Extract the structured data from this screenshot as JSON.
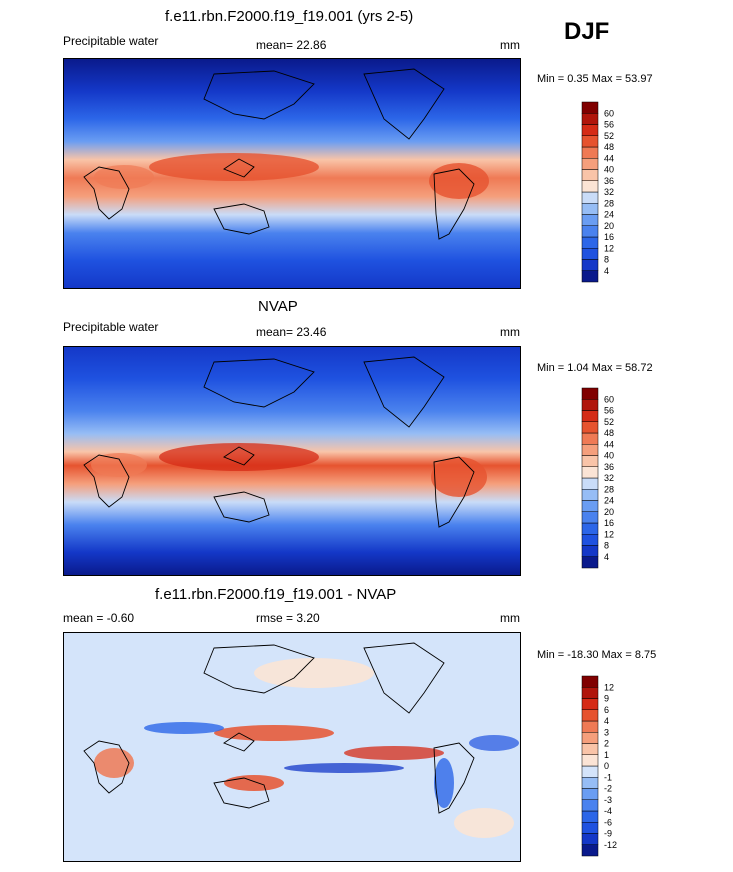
{
  "season": "DJF",
  "panels": [
    {
      "title": "f.e11.rbn.F2000.f19_f19.001 (yrs 2-5)",
      "left_label": "Precipitable water",
      "stat_text": "mean=  22.86",
      "units": "mm",
      "minmax": "Min =   0.35 Max =  53.97",
      "colorbar": {
        "labels": [
          "4",
          "8",
          "12",
          "16",
          "20",
          "24",
          "28",
          "32",
          "36",
          "40",
          "44",
          "48",
          "52",
          "56",
          "60"
        ],
        "colors": [
          "#0a1a8c",
          "#1438c8",
          "#1f52e0",
          "#2c66e8",
          "#4a82ee",
          "#6a9df2",
          "#96bdf5",
          "#c9dcf8",
          "#fbe4d5",
          "#f9c4a8",
          "#f59f7c",
          "#ef7a55",
          "#e6532f",
          "#d52b16",
          "#b0150b",
          "#800000"
        ]
      }
    },
    {
      "title": "NVAP",
      "left_label": "Precipitable water",
      "stat_text": "mean=  23.46",
      "units": "mm",
      "minmax": "Min =   1.04 Max =  58.72",
      "colorbar": {
        "labels": [
          "4",
          "8",
          "12",
          "16",
          "20",
          "24",
          "28",
          "32",
          "36",
          "40",
          "44",
          "48",
          "52",
          "56",
          "60"
        ],
        "colors": [
          "#0a1a8c",
          "#1438c8",
          "#1f52e0",
          "#2c66e8",
          "#4a82ee",
          "#6a9df2",
          "#96bdf5",
          "#c9dcf8",
          "#fbe4d5",
          "#f9c4a8",
          "#f59f7c",
          "#ef7a55",
          "#e6532f",
          "#d52b16",
          "#b0150b",
          "#800000"
        ]
      }
    },
    {
      "title": "f.e11.rbn.F2000.f19_f19.001 - NVAP",
      "left_label": "mean =  -0.60",
      "stat_text": "rmse =   3.20",
      "units": "mm",
      "minmax": "Min = -18.30 Max =   8.75",
      "colorbar": {
        "labels": [
          "-12",
          "-9",
          "-6",
          "-4",
          "-3",
          "-2",
          "-1",
          "0",
          "1",
          "2",
          "3",
          "4",
          "6",
          "9",
          "12"
        ],
        "colors": [
          "#0a1a8c",
          "#1438c8",
          "#1f52e0",
          "#2c66e8",
          "#4a82ee",
          "#6a9df2",
          "#96bdf5",
          "#d4e4fa",
          "#fbe4d5",
          "#f9c4a8",
          "#f59f7c",
          "#ef7a55",
          "#e6532f",
          "#d52b16",
          "#b0150b",
          "#800000"
        ]
      }
    }
  ]
}
